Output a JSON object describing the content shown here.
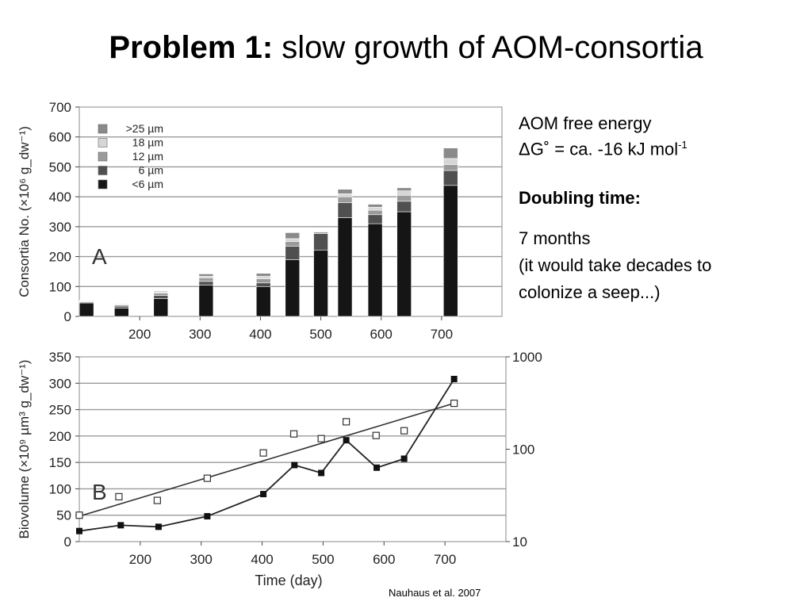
{
  "title": {
    "bold": "Problem 1:",
    "rest": " slow growth of AOM-consortia"
  },
  "side": {
    "energy_line1": "AOM free energy",
    "energy_line2_main": "ΔG˚  = ca. -16 kJ mol",
    "energy_line2_sup": "-1",
    "doubling_heading": "Doubling time:",
    "doubling_value": "7 months",
    "doubling_note1": "(it would take decades to",
    "doubling_note2": "colonize a seep...)"
  },
  "citation": "Nauhaus et al. 2007",
  "colors": {
    "c25": "#8a8a8a",
    "c18": "#d6d6d6",
    "c12": "#9a9a9a",
    "c6": "#505050",
    "clt6": "#151515",
    "grid": "#9a9a9a"
  },
  "chart_data": [
    {
      "type": "bar",
      "stacked": true,
      "panel_label": "A",
      "ylabel": "Consortia No. (×10⁶ g_dw⁻¹)",
      "ylim": [
        0,
        700
      ],
      "yticks": [
        0,
        100,
        200,
        300,
        400,
        500,
        600,
        700
      ],
      "xticks": [
        200,
        300,
        400,
        500,
        600,
        700
      ],
      "xlim": [
        100,
        800
      ],
      "grid": true,
      "legend_position": "top-left",
      "x": [
        112,
        170,
        235,
        310,
        405,
        453,
        500,
        540,
        590,
        638,
        715
      ],
      "series": [
        {
          "name": "<6 µm",
          "color": "#151515",
          "values": [
            45,
            28,
            60,
            105,
            100,
            190,
            222,
            330,
            310,
            350,
            438
          ]
        },
        {
          "name": "6 µm",
          "color": "#505050",
          "values": [
            3,
            6,
            10,
            12,
            12,
            45,
            55,
            50,
            30,
            35,
            50
          ]
        },
        {
          "name": "12 µm",
          "color": "#9a9a9a",
          "values": [
            2,
            4,
            8,
            12,
            14,
            15,
            5,
            20,
            15,
            20,
            20
          ]
        },
        {
          "name": "18 µm",
          "color": "#d6d6d6",
          "values": [
            2,
            2,
            3,
            5,
            8,
            10,
            2,
            10,
            10,
            15,
            20
          ]
        },
        {
          "name": ">25 µm",
          "color": "#8a8a8a",
          "values": [
            2,
            2,
            3,
            8,
            10,
            20,
            0,
            15,
            10,
            10,
            35
          ]
        }
      ]
    },
    {
      "type": "line",
      "panel_label": "B",
      "xlabel": "Time (day)",
      "ylabel": "Biovolume (×10⁹ µm³ g_dw⁻¹)",
      "ylim": [
        0,
        350
      ],
      "yticks": [
        0,
        50,
        100,
        150,
        200,
        250,
        300,
        350
      ],
      "y2_scale": "log",
      "y2lim": [
        10,
        1000
      ],
      "y2ticks": [
        10,
        100,
        1000
      ],
      "xlim": [
        100,
        800
      ],
      "xticks": [
        200,
        300,
        400,
        500,
        600,
        700
      ],
      "grid": true,
      "biovolume_filled": {
        "x": [
          100,
          168,
          230,
          310,
          402,
          453,
          497,
          538,
          588,
          633,
          715
        ],
        "y": [
          20,
          31,
          28,
          48,
          90,
          145,
          130,
          192,
          140,
          157,
          308
        ]
      },
      "open_points_log": {
        "x": [
          100,
          165,
          228,
          310,
          402,
          452,
          497,
          538,
          587,
          633,
          715
        ],
        "y": [
          23,
          30,
          28,
          48,
          92,
          145,
          130,
          185,
          140,
          157,
          308
        ]
      },
      "trend_line": {
        "x": [
          100,
          715
        ],
        "y": [
          48,
          262
        ]
      }
    }
  ]
}
